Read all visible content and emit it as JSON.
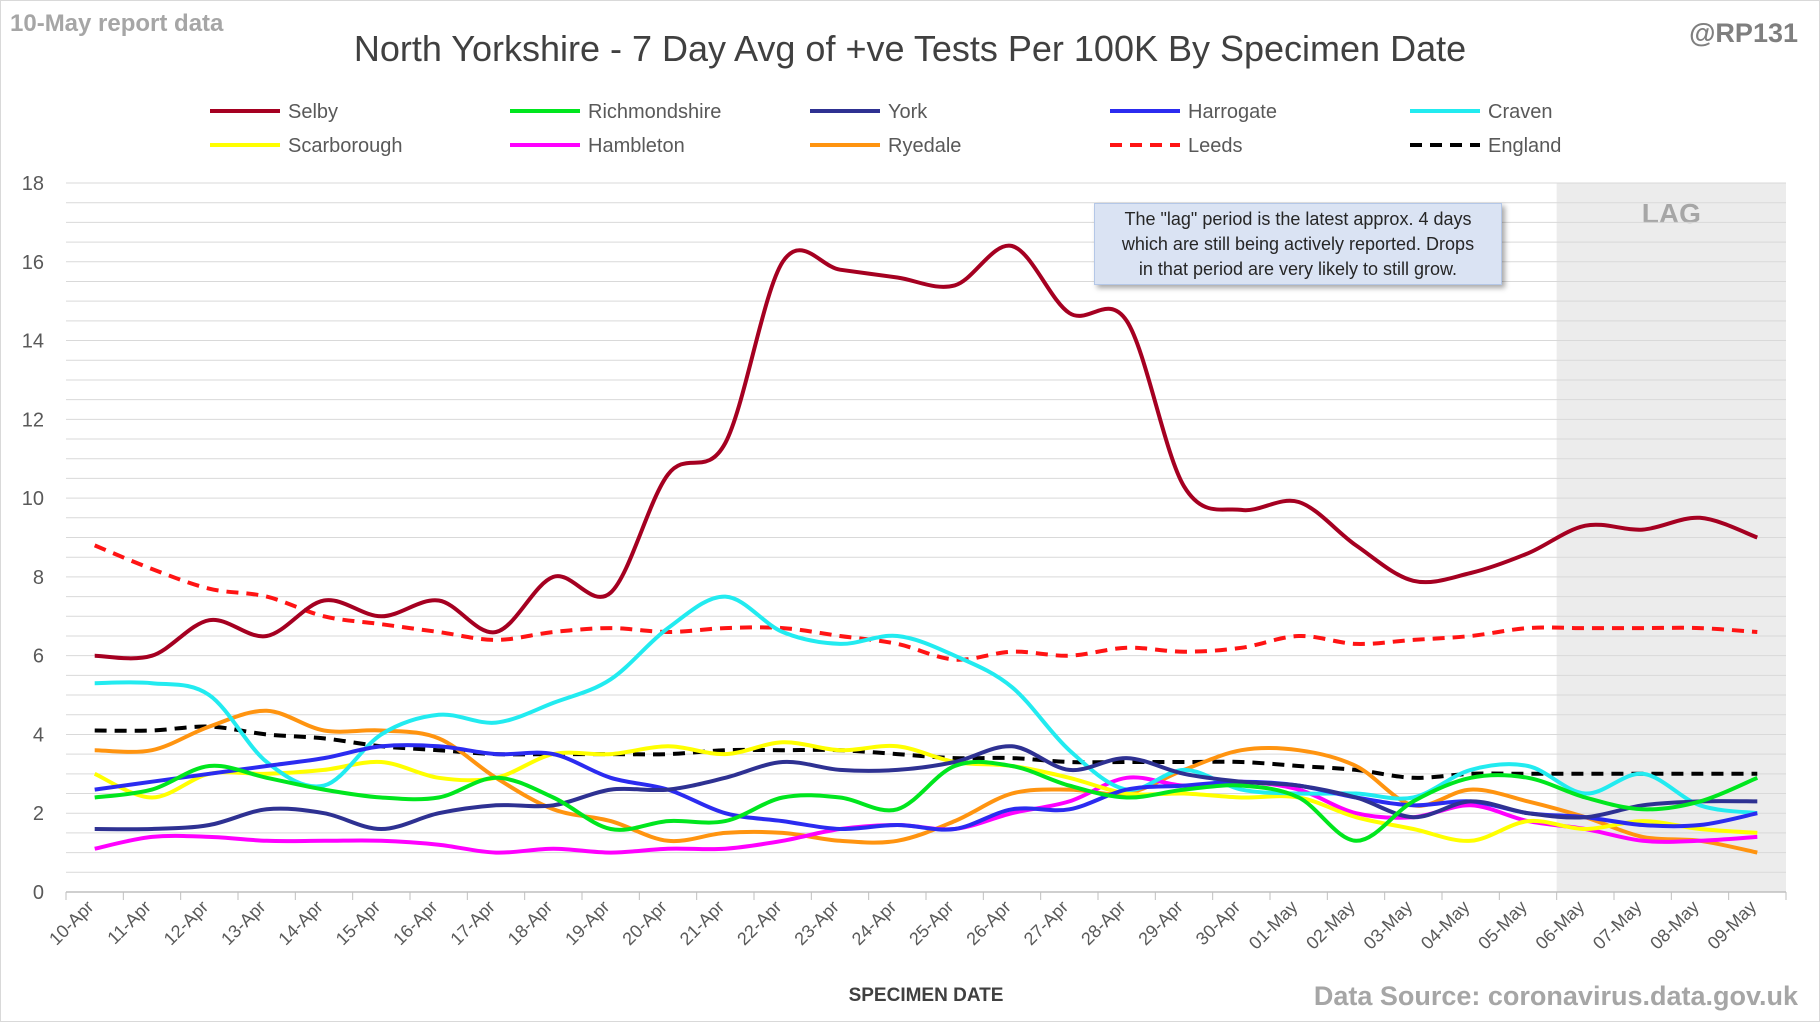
{
  "header": {
    "report_label": "10-May report data",
    "handle": "@RP131",
    "source": "Data Source: coronavirus.data.gov.uk"
  },
  "note": {
    "lines": [
      "The \"lag\" period is the latest approx. 4 days",
      "which are still being actively reported.  Drops",
      "in that period are very likely to still grow."
    ]
  },
  "chart_data": {
    "type": "line",
    "title": "North Yorkshire - 7 Day Avg of +ve Tests Per 100K By Specimen Date",
    "xlabel": "SPECIMEN DATE",
    "ylabel": "",
    "ylim": [
      0,
      18
    ],
    "yticks": [
      0,
      2,
      4,
      6,
      8,
      10,
      12,
      14,
      16,
      18
    ],
    "grid": true,
    "legend_position": "top",
    "lag_label": "LAG",
    "lag_region": [
      "06-May",
      "09-May"
    ],
    "categories": [
      "10-Apr",
      "11-Apr",
      "12-Apr",
      "13-Apr",
      "14-Apr",
      "15-Apr",
      "16-Apr",
      "17-Apr",
      "18-Apr",
      "19-Apr",
      "20-Apr",
      "21-Apr",
      "22-Apr",
      "23-Apr",
      "24-Apr",
      "25-Apr",
      "26-Apr",
      "27-Apr",
      "28-Apr",
      "29-Apr",
      "30-Apr",
      "01-May",
      "02-May",
      "03-May",
      "04-May",
      "05-May",
      "06-May",
      "07-May",
      "08-May",
      "09-May"
    ],
    "series": [
      {
        "name": "Selby",
        "color": "#a50021",
        "dash": "solid",
        "values": [
          6.0,
          6.0,
          6.9,
          6.5,
          7.4,
          7.0,
          7.4,
          6.6,
          8.0,
          7.6,
          10.6,
          11.4,
          16.0,
          15.8,
          15.6,
          15.4,
          16.4,
          14.7,
          14.5,
          10.3,
          9.7,
          9.9,
          8.8,
          7.9,
          8.1,
          8.6,
          9.3,
          9.2,
          9.5,
          9.0
        ]
      },
      {
        "name": "Richmondshire",
        "color": "#00e61e",
        "dash": "solid",
        "values": [
          2.4,
          2.6,
          3.2,
          2.9,
          2.6,
          2.4,
          2.4,
          2.9,
          2.4,
          1.6,
          1.8,
          1.8,
          2.4,
          2.4,
          2.1,
          3.2,
          3.2,
          2.7,
          2.4,
          2.6,
          2.7,
          2.4,
          1.3,
          2.3,
          2.9,
          2.9,
          2.4,
          2.1,
          2.3,
          2.9
        ]
      },
      {
        "name": "York",
        "color": "#2e3192",
        "dash": "solid",
        "values": [
          1.6,
          1.6,
          1.7,
          2.1,
          2.0,
          1.6,
          2.0,
          2.2,
          2.2,
          2.6,
          2.6,
          2.9,
          3.3,
          3.1,
          3.1,
          3.3,
          3.7,
          3.1,
          3.4,
          3.0,
          2.8,
          2.7,
          2.4,
          1.9,
          2.3,
          2.0,
          1.9,
          2.2,
          2.3,
          2.3
        ]
      },
      {
        "name": "Harrogate",
        "color": "#2b2bf0",
        "dash": "solid",
        "values": [
          2.6,
          2.8,
          3.0,
          3.2,
          3.4,
          3.7,
          3.7,
          3.5,
          3.5,
          2.9,
          2.6,
          2.0,
          1.8,
          1.6,
          1.7,
          1.6,
          2.1,
          2.1,
          2.6,
          2.7,
          2.8,
          2.7,
          2.4,
          2.2,
          2.3,
          2.0,
          1.9,
          1.7,
          1.7,
          2.0
        ]
      },
      {
        "name": "Craven",
        "color": "#22ebf0",
        "dash": "solid",
        "values": [
          5.3,
          5.3,
          5.0,
          3.3,
          2.7,
          4.0,
          4.5,
          4.3,
          4.8,
          5.4,
          6.7,
          7.5,
          6.6,
          6.3,
          6.5,
          6.0,
          5.2,
          3.6,
          2.6,
          3.1,
          2.6,
          2.5,
          2.5,
          2.4,
          3.1,
          3.2,
          2.5,
          3.0,
          2.2,
          2.0
        ]
      },
      {
        "name": "Scarborough",
        "color": "#ffff00",
        "dash": "solid",
        "values": [
          3.0,
          2.4,
          3.0,
          3.0,
          3.1,
          3.3,
          2.9,
          2.9,
          3.5,
          3.5,
          3.7,
          3.5,
          3.8,
          3.6,
          3.7,
          3.3,
          3.2,
          2.9,
          2.5,
          2.5,
          2.4,
          2.4,
          1.9,
          1.6,
          1.3,
          1.8,
          1.6,
          1.8,
          1.6,
          1.5
        ]
      },
      {
        "name": "Hambleton",
        "color": "#ff00ff",
        "dash": "solid",
        "values": [
          1.1,
          1.4,
          1.4,
          1.3,
          1.3,
          1.3,
          1.2,
          1.0,
          1.1,
          1.0,
          1.1,
          1.1,
          1.3,
          1.6,
          1.7,
          1.6,
          2.0,
          2.3,
          2.9,
          2.7,
          2.8,
          2.6,
          2.0,
          1.9,
          2.2,
          1.8,
          1.6,
          1.3,
          1.3,
          1.4
        ]
      },
      {
        "name": "Ryedale",
        "color": "#ff9410",
        "dash": "solid",
        "values": [
          3.6,
          3.6,
          4.2,
          4.6,
          4.1,
          4.1,
          3.9,
          2.9,
          2.1,
          1.8,
          1.3,
          1.5,
          1.5,
          1.3,
          1.3,
          1.8,
          2.5,
          2.6,
          2.5,
          3.1,
          3.6,
          3.6,
          3.2,
          2.2,
          2.6,
          2.3,
          1.9,
          1.4,
          1.3,
          1.0
        ]
      },
      {
        "name": "Leeds",
        "color": "#ff1414",
        "dash": "dashed",
        "values": [
          8.8,
          8.2,
          7.7,
          7.5,
          7.0,
          6.8,
          6.6,
          6.4,
          6.6,
          6.7,
          6.6,
          6.7,
          6.7,
          6.5,
          6.3,
          5.9,
          6.1,
          6.0,
          6.2,
          6.1,
          6.2,
          6.5,
          6.3,
          6.4,
          6.5,
          6.7,
          6.7,
          6.7,
          6.7,
          6.6
        ]
      },
      {
        "name": "England",
        "color": "#000000",
        "dash": "dashed",
        "values": [
          4.1,
          4.1,
          4.2,
          4.0,
          3.9,
          3.7,
          3.6,
          3.5,
          3.5,
          3.5,
          3.5,
          3.6,
          3.6,
          3.6,
          3.5,
          3.4,
          3.4,
          3.3,
          3.3,
          3.3,
          3.3,
          3.2,
          3.1,
          2.9,
          3.0,
          3.0,
          3.0,
          3.0,
          3.0,
          3.0
        ]
      }
    ]
  }
}
